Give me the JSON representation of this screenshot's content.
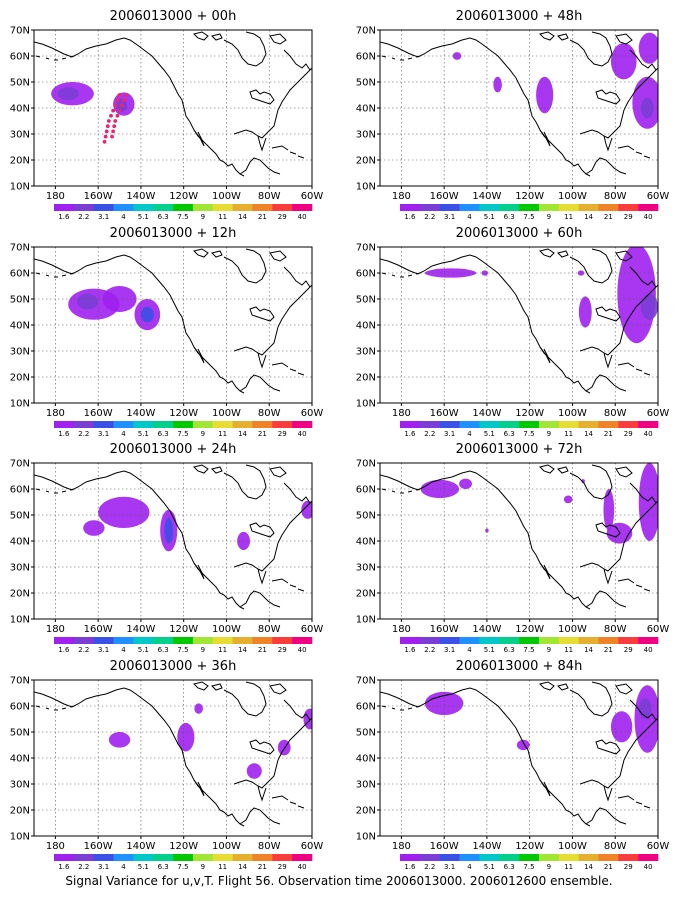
{
  "panels": [
    {
      "title": "2006013000 + 00h",
      "col": 0,
      "row": 0,
      "blobs": [
        {
          "lon": 172,
          "lat": 45.5,
          "rx": 10,
          "ry": 4.5,
          "c": "#a020f0"
        },
        {
          "lon": 174,
          "lat": 45.5,
          "rx": 5,
          "ry": 2.5,
          "c": "#7b3dd6"
        },
        {
          "lon": 148,
          "lat": 41.5,
          "rx": 5,
          "ry": 4.5,
          "c": "#a020f0"
        },
        {
          "lon": 149,
          "lat": 41,
          "rx": 2.5,
          "ry": 2.5,
          "c": "#7b3dd6"
        }
      ],
      "dots": [
        {
          "lon": 150,
          "lat": 45
        },
        {
          "lon": 151,
          "lat": 43
        },
        {
          "lon": 152,
          "lat": 41
        },
        {
          "lon": 153,
          "lat": 39
        },
        {
          "lon": 154,
          "lat": 37
        },
        {
          "lon": 155,
          "lat": 35
        },
        {
          "lon": 155.5,
          "lat": 33
        },
        {
          "lon": 156,
          "lat": 31
        },
        {
          "lon": 156.5,
          "lat": 29
        },
        {
          "lon": 157,
          "lat": 27
        },
        {
          "lon": 147,
          "lat": 45
        },
        {
          "lon": 148,
          "lat": 43
        },
        {
          "lon": 149,
          "lat": 41
        },
        {
          "lon": 150,
          "lat": 39
        },
        {
          "lon": 151,
          "lat": 37
        },
        {
          "lon": 152,
          "lat": 35
        },
        {
          "lon": 152.5,
          "lat": 33
        },
        {
          "lon": 153,
          "lat": 31
        },
        {
          "lon": 153.5,
          "lat": 29
        }
      ]
    },
    {
      "title": "2006013000 + 12h",
      "col": 0,
      "row": 1,
      "blobs": [
        {
          "lon": 162,
          "lat": 48,
          "rx": 12,
          "ry": 6,
          "c": "#a020f0"
        },
        {
          "lon": 150,
          "lat": 50,
          "rx": 8,
          "ry": 5,
          "c": "#a020f0"
        },
        {
          "lon": 137,
          "lat": 44,
          "rx": 6,
          "ry": 6,
          "c": "#a020f0"
        },
        {
          "lon": 137,
          "lat": 44,
          "rx": 3,
          "ry": 3,
          "c": "#3a50e6"
        },
        {
          "lon": 165,
          "lat": 49,
          "rx": 5,
          "ry": 3,
          "c": "#7b3dd6"
        }
      ],
      "dots": []
    },
    {
      "title": "2006013000 + 24h",
      "col": 0,
      "row": 2,
      "blobs": [
        {
          "lon": 148,
          "lat": 51,
          "rx": 12,
          "ry": 6,
          "c": "#a020f0"
        },
        {
          "lon": 162,
          "lat": 45,
          "rx": 5,
          "ry": 3,
          "c": "#a020f0"
        },
        {
          "lon": 127,
          "lat": 44,
          "rx": 4,
          "ry": 8,
          "c": "#a020f0"
        },
        {
          "lon": 127,
          "lat": 44,
          "rx": 2,
          "ry": 5,
          "c": "#3a50e6"
        },
        {
          "lon": 92,
          "lat": 40,
          "rx": 3,
          "ry": 3.5,
          "c": "#a020f0"
        },
        {
          "lon": 62,
          "lat": 52,
          "rx": 3,
          "ry": 3.5,
          "c": "#a020f0"
        }
      ],
      "dots": []
    },
    {
      "title": "2006013000 + 36h",
      "col": 0,
      "row": 3,
      "blobs": [
        {
          "lon": 150,
          "lat": 47,
          "rx": 5,
          "ry": 3,
          "c": "#a020f0"
        },
        {
          "lon": 119,
          "lat": 48,
          "rx": 4,
          "ry": 5.5,
          "c": "#a020f0"
        },
        {
          "lon": 113,
          "lat": 59,
          "rx": 2,
          "ry": 2,
          "c": "#a020f0"
        },
        {
          "lon": 87,
          "lat": 35,
          "rx": 3.5,
          "ry": 3,
          "c": "#a020f0"
        },
        {
          "lon": 73,
          "lat": 44,
          "rx": 3,
          "ry": 3,
          "c": "#a020f0"
        },
        {
          "lon": 61,
          "lat": 55,
          "rx": 3,
          "ry": 4,
          "c": "#a020f0"
        }
      ],
      "dots": []
    },
    {
      "title": "2006013000 + 48h",
      "col": 1,
      "row": 0,
      "blobs": [
        {
          "lon": 154,
          "lat": 60,
          "rx": 2,
          "ry": 1.5,
          "c": "#a020f0"
        },
        {
          "lon": 135,
          "lat": 49,
          "rx": 2,
          "ry": 3,
          "c": "#a020f0"
        },
        {
          "lon": 113,
          "lat": 45,
          "rx": 4,
          "ry": 7,
          "c": "#a020f0"
        },
        {
          "lon": 76,
          "lat": 58,
          "rx": 6,
          "ry": 7,
          "c": "#a020f0"
        },
        {
          "lon": 65,
          "lat": 42,
          "rx": 7,
          "ry": 10,
          "c": "#a020f0"
        },
        {
          "lon": 64,
          "lat": 63,
          "rx": 5,
          "ry": 6,
          "c": "#a020f0"
        },
        {
          "lon": 65,
          "lat": 40,
          "rx": 3,
          "ry": 4,
          "c": "#7b3dd6"
        }
      ],
      "dots": []
    },
    {
      "title": "2006013000 + 60h",
      "col": 1,
      "row": 1,
      "blobs": [
        {
          "lon": 157,
          "lat": 60,
          "rx": 12,
          "ry": 1.8,
          "c": "#a020f0"
        },
        {
          "lon": 141,
          "lat": 60,
          "rx": 1.5,
          "ry": 1,
          "c": "#a020f0"
        },
        {
          "lon": 96,
          "lat": 60,
          "rx": 1.5,
          "ry": 1,
          "c": "#a020f0"
        },
        {
          "lon": 94,
          "lat": 45,
          "rx": 3,
          "ry": 6,
          "c": "#a020f0"
        },
        {
          "lon": 70,
          "lat": 52,
          "rx": 9,
          "ry": 19,
          "c": "#a020f0"
        },
        {
          "lon": 64,
          "lat": 47,
          "rx": 4,
          "ry": 5,
          "c": "#7b3dd6"
        }
      ],
      "dots": []
    },
    {
      "title": "2006013000 + 72h",
      "col": 1,
      "row": 2,
      "blobs": [
        {
          "lon": 162,
          "lat": 60,
          "rx": 9,
          "ry": 3.5,
          "c": "#a020f0"
        },
        {
          "lon": 150,
          "lat": 62,
          "rx": 3,
          "ry": 2,
          "c": "#a020f0"
        },
        {
          "lon": 140,
          "lat": 44,
          "rx": 0.8,
          "ry": 0.8,
          "c": "#a020f0"
        },
        {
          "lon": 102,
          "lat": 56,
          "rx": 2,
          "ry": 1.5,
          "c": "#a020f0"
        },
        {
          "lon": 95,
          "lat": 63,
          "rx": 0.8,
          "ry": 0.8,
          "c": "#a020f0"
        },
        {
          "lon": 83,
          "lat": 52,
          "rx": 2.5,
          "ry": 8,
          "c": "#a020f0"
        },
        {
          "lon": 78,
          "lat": 43,
          "rx": 6,
          "ry": 4,
          "c": "#a020f0"
        },
        {
          "lon": 64,
          "lat": 55,
          "rx": 5,
          "ry": 15,
          "c": "#a020f0"
        }
      ],
      "dots": []
    },
    {
      "title": "2006013000 + 84h",
      "col": 1,
      "row": 3,
      "blobs": [
        {
          "lon": 160,
          "lat": 61,
          "rx": 9,
          "ry": 4.5,
          "c": "#a020f0"
        },
        {
          "lon": 123,
          "lat": 45,
          "rx": 3,
          "ry": 2,
          "c": "#a020f0"
        },
        {
          "lon": 77,
          "lat": 52,
          "rx": 5,
          "ry": 6,
          "c": "#a020f0"
        },
        {
          "lon": 65,
          "lat": 55,
          "rx": 6,
          "ry": 13,
          "c": "#a020f0"
        },
        {
          "lon": 66,
          "lat": 59,
          "rx": 3,
          "ry": 4,
          "c": "#7b3dd6"
        }
      ],
      "dots": []
    }
  ],
  "lat_labels": [
    "70N",
    "60N",
    "50N",
    "40N",
    "30N",
    "20N",
    "10N"
  ],
  "lon_labels": [
    "180",
    "160W",
    "140W",
    "120W",
    "100W",
    "80W",
    "60W"
  ],
  "colorbar": {
    "labels": [
      "1.6",
      "2.2",
      "3.1",
      "4",
      "5.1",
      "6.3",
      "7.5",
      "9",
      "11",
      "14",
      "21",
      "29",
      "40"
    ],
    "colors": [
      "#a020f0",
      "#7b3dd6",
      "#3a50e6",
      "#1e90ff",
      "#00c8c8",
      "#00d08c",
      "#00c800",
      "#a0e632",
      "#e6dc32",
      "#e6af2d",
      "#f08228",
      "#fa3c3c",
      "#f00082"
    ]
  },
  "dot_color": "#e8286e",
  "caption": "Signal Variance for u,v,T. Flight 56. Observation time 2006013000. 2006012600 ensemble."
}
